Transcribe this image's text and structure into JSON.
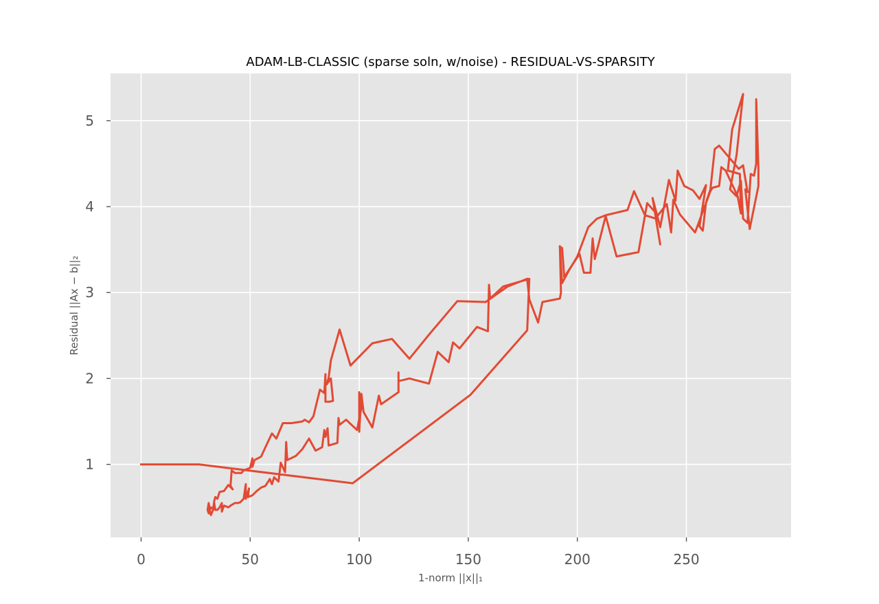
{
  "chart_data": {
    "type": "line",
    "title": "ADAM-LB-CLASSIC (sparse soln, w/noise) - RESIDUAL-VS-SPARSITY",
    "xlabel": "1-norm ||x||₁",
    "ylabel": "Residual ||Ax − b||₂",
    "xlim": [
      -14,
      298
    ],
    "ylim": [
      0.15,
      5.55
    ],
    "xticks": [
      0,
      50,
      100,
      150,
      200,
      250
    ],
    "yticks": [
      1,
      2,
      3,
      4,
      5
    ],
    "grid": true,
    "legend": "none",
    "series": [
      {
        "color": "#e24a33",
        "points": [
          [
            0,
            1.0
          ],
          [
            26.5,
            1.0
          ],
          [
            97,
            0.78
          ],
          [
            151,
            1.81
          ],
          [
            177,
            2.56
          ],
          [
            178,
            3.16
          ],
          [
            166,
            3.07
          ],
          [
            160,
            2.93
          ],
          [
            159.5,
            3.09
          ],
          [
            159,
            2.55
          ],
          [
            154,
            2.6
          ],
          [
            146,
            2.35
          ],
          [
            143,
            2.42
          ],
          [
            141,
            2.19
          ],
          [
            136,
            2.31
          ],
          [
            132,
            1.94
          ],
          [
            123,
            2.0
          ],
          [
            118,
            1.97
          ],
          [
            118,
            2.07
          ],
          [
            118,
            1.84
          ],
          [
            114,
            1.77
          ],
          [
            110,
            1.7
          ],
          [
            109,
            1.8
          ],
          [
            106,
            1.43
          ],
          [
            102,
            1.61
          ],
          [
            101,
            1.82
          ],
          [
            100,
            1.38
          ],
          [
            100,
            1.84
          ],
          [
            101,
            1.66
          ],
          [
            99,
            1.4
          ],
          [
            94,
            1.52
          ],
          [
            91,
            1.46
          ],
          [
            90.5,
            1.54
          ],
          [
            90,
            1.25
          ],
          [
            86,
            1.22
          ],
          [
            85.5,
            1.42
          ],
          [
            84.5,
            1.32
          ],
          [
            84,
            1.4
          ],
          [
            83,
            1.2
          ],
          [
            80,
            1.16
          ],
          [
            77,
            1.3
          ],
          [
            74,
            1.18
          ],
          [
            71,
            1.1
          ],
          [
            67,
            1.05
          ],
          [
            66.5,
            1.26
          ],
          [
            66,
            0.91
          ],
          [
            64,
            1.02
          ],
          [
            63,
            0.8
          ],
          [
            61,
            0.85
          ],
          [
            60,
            0.77
          ],
          [
            59,
            0.83
          ],
          [
            57,
            0.75
          ],
          [
            55,
            0.73
          ],
          [
            53,
            0.69
          ],
          [
            51,
            0.64
          ],
          [
            49,
            0.62
          ],
          [
            49.5,
            0.72
          ],
          [
            48,
            0.6
          ],
          [
            48,
            0.77
          ],
          [
            47,
            0.6
          ],
          [
            45.5,
            0.56
          ],
          [
            44.5,
            0.55
          ],
          [
            43,
            0.55
          ],
          [
            41,
            0.52
          ],
          [
            40,
            0.5
          ],
          [
            38,
            0.52
          ],
          [
            37,
            0.45
          ],
          [
            37,
            0.55
          ],
          [
            36,
            0.5
          ],
          [
            35,
            0.47
          ],
          [
            34,
            0.47
          ],
          [
            33.5,
            0.55
          ],
          [
            33,
            0.47
          ],
          [
            32.5,
            0.44
          ],
          [
            32,
            0.41
          ],
          [
            31.5,
            0.47
          ],
          [
            31,
            0.55
          ],
          [
            30.5,
            0.47
          ],
          [
            31,
            0.43
          ],
          [
            32,
            0.5
          ],
          [
            33,
            0.48
          ],
          [
            33.5,
            0.57
          ],
          [
            34,
            0.62
          ],
          [
            35,
            0.6
          ],
          [
            36,
            0.68
          ],
          [
            38,
            0.69
          ],
          [
            40,
            0.76
          ],
          [
            42,
            0.71
          ],
          [
            41,
            0.75
          ],
          [
            41.5,
            0.93
          ],
          [
            43,
            0.9
          ],
          [
            46,
            0.9
          ],
          [
            47,
            0.93
          ],
          [
            50,
            0.96
          ],
          [
            51,
            1.07
          ],
          [
            51,
            0.97
          ],
          [
            52,
            1.05
          ],
          [
            55,
            1.09
          ],
          [
            57,
            1.2
          ],
          [
            60,
            1.36
          ],
          [
            62,
            1.3
          ],
          [
            65,
            1.48
          ],
          [
            69,
            1.48
          ],
          [
            74,
            1.5
          ],
          [
            75,
            1.52
          ],
          [
            77,
            1.49
          ],
          [
            79,
            1.56
          ],
          [
            82,
            1.87
          ],
          [
            84,
            1.83
          ],
          [
            84.5,
            2.05
          ],
          [
            84.5,
            1.73
          ],
          [
            86.5,
            1.73
          ],
          [
            88,
            1.74
          ],
          [
            87,
            2.0
          ],
          [
            85,
            1.93
          ],
          [
            86,
            2.01
          ],
          [
            87,
            2.21
          ],
          [
            91,
            2.57
          ],
          [
            96,
            2.15
          ],
          [
            106,
            2.41
          ],
          [
            115,
            2.46
          ],
          [
            123,
            2.23
          ],
          [
            132,
            2.51
          ],
          [
            145,
            2.9
          ],
          [
            158,
            2.89
          ],
          [
            163,
            2.98
          ],
          [
            168,
            3.07
          ],
          [
            177,
            3.16
          ],
          [
            178,
            2.92
          ],
          [
            182,
            2.65
          ],
          [
            184,
            2.89
          ],
          [
            192,
            2.93
          ],
          [
            192.5,
            3.0
          ],
          [
            192,
            3.54
          ],
          [
            193,
            3.11
          ],
          [
            196,
            3.25
          ],
          [
            200,
            3.42
          ],
          [
            205,
            3.76
          ],
          [
            209,
            3.86
          ],
          [
            213,
            3.9
          ],
          [
            218,
            3.93
          ],
          [
            223,
            3.96
          ],
          [
            226,
            4.18
          ],
          [
            231,
            3.9
          ],
          [
            236,
            3.86
          ],
          [
            238,
            3.56
          ],
          [
            234.5,
            4.1
          ],
          [
            238,
            3.76
          ],
          [
            242,
            4.31
          ],
          [
            245,
            4.07
          ],
          [
            246,
            4.42
          ],
          [
            249,
            4.24
          ],
          [
            253,
            4.19
          ],
          [
            256,
            4.09
          ],
          [
            259,
            4.25
          ],
          [
            256,
            3.77
          ],
          [
            257.5,
            3.72
          ],
          [
            259,
            4.05
          ],
          [
            261,
            4.2
          ],
          [
            263,
            4.67
          ],
          [
            265,
            4.71
          ],
          [
            271,
            4.53
          ],
          [
            274,
            4.44
          ],
          [
            276,
            4.48
          ],
          [
            278,
            4.17
          ],
          [
            277,
            4.2
          ],
          [
            279,
            3.74
          ],
          [
            283,
            4.24
          ],
          [
            283,
            4.45
          ],
          [
            282,
            5.25
          ],
          [
            282,
            4.5
          ],
          [
            281,
            4.36
          ],
          [
            279.5,
            4.38
          ],
          [
            279,
            4.2
          ],
          [
            278,
            3.81
          ],
          [
            276,
            3.86
          ],
          [
            275,
            4.3
          ],
          [
            273,
            4.12
          ],
          [
            270,
            4.2
          ],
          [
            273,
            4.6
          ],
          [
            276,
            5.31
          ],
          [
            271,
            4.9
          ],
          [
            269,
            4.42
          ],
          [
            274.5,
            4.38
          ],
          [
            275,
            3.92
          ],
          [
            273.5,
            4.12
          ],
          [
            268,
            4.42
          ],
          [
            266,
            4.46
          ],
          [
            265,
            4.24
          ],
          [
            262,
            4.22
          ],
          [
            261,
            4.18
          ],
          [
            254,
            3.7
          ],
          [
            247,
            3.91
          ],
          [
            244,
            4.08
          ],
          [
            243,
            3.7
          ],
          [
            241,
            4.03
          ],
          [
            237,
            3.9
          ],
          [
            232,
            4.04
          ],
          [
            228,
            3.47
          ],
          [
            218,
            3.42
          ],
          [
            213,
            3.89
          ],
          [
            208,
            3.39
          ],
          [
            207,
            3.63
          ],
          [
            206,
            3.23
          ],
          [
            203,
            3.23
          ],
          [
            201,
            3.45
          ],
          [
            194,
            3.18
          ],
          [
            193,
            3.52
          ],
          [
            192,
            3.53
          ]
        ]
      }
    ]
  }
}
